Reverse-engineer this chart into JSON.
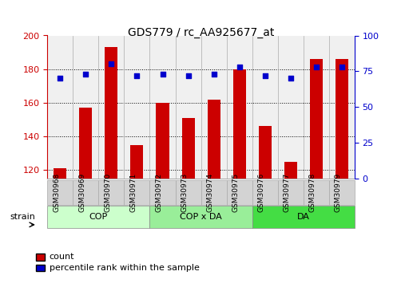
{
  "title": "GDS779 / rc_AA925677_at",
  "categories": [
    "GSM30968",
    "GSM30969",
    "GSM30970",
    "GSM30971",
    "GSM30972",
    "GSM30973",
    "GSM30974",
    "GSM30975",
    "GSM30976",
    "GSM30977",
    "GSM30978",
    "GSM30979"
  ],
  "counts": [
    121,
    157,
    193,
    135,
    160,
    151,
    162,
    180,
    146,
    125,
    186,
    186
  ],
  "percentiles": [
    70,
    73,
    80,
    72,
    73,
    72,
    73,
    78,
    72,
    70,
    78,
    78
  ],
  "bar_color": "#cc0000",
  "dot_color": "#0000cc",
  "ylim_left": [
    115,
    200
  ],
  "ylim_right": [
    0,
    100
  ],
  "yticks_left": [
    120,
    140,
    160,
    180,
    200
  ],
  "yticks_right": [
    0,
    25,
    50,
    75,
    100
  ],
  "groups": [
    {
      "label": "COP",
      "start": 0,
      "end": 4,
      "color": "#ccffcc"
    },
    {
      "label": "COP x DA",
      "start": 4,
      "end": 8,
      "color": "#99ee99"
    },
    {
      "label": "DA",
      "start": 8,
      "end": 12,
      "color": "#44dd44"
    }
  ],
  "strain_label": "strain",
  "legend_count_label": "count",
  "legend_pct_label": "percentile rank within the sample",
  "plot_bg_color": "#f0f0f0",
  "bar_width": 0.5
}
